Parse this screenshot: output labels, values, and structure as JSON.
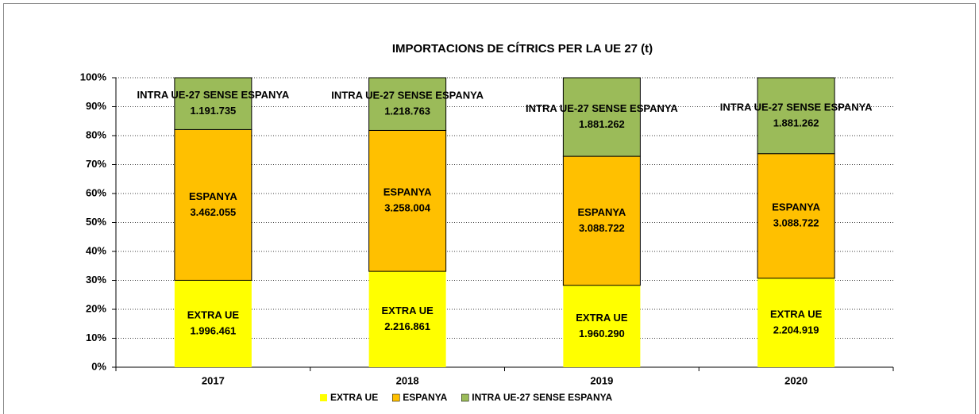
{
  "chart_data": {
    "type": "bar",
    "stacked": "percent",
    "title": "IMPORTACIONS DE CÍTRICS PER LA UE 27 (t)",
    "categories": [
      "2017",
      "2018",
      "2019",
      "2020"
    ],
    "series": [
      {
        "name": "EXTRA UE",
        "color": "#ffff00",
        "values": [
          1996461,
          2216861,
          1960290,
          2204919
        ],
        "value_labels": [
          "1.996.461",
          "2.216.861",
          "1.960.290",
          "2.204.919"
        ]
      },
      {
        "name": "ESPANYA",
        "color": "#ffc000",
        "values": [
          3462055,
          3258004,
          3088722,
          3088722
        ],
        "value_labels": [
          "3.462.055",
          "3.258.004",
          "3.088.722",
          "3.088.722"
        ]
      },
      {
        "name": "INTRA UE-27 SENSE ESPANYA",
        "color": "#9bbb59",
        "values": [
          1191735,
          1218763,
          1881262,
          1881262
        ],
        "value_labels": [
          "1.191.735",
          "1.218.763",
          "1.881.262",
          "1.881.262"
        ]
      }
    ],
    "ylim": [
      0,
      100
    ],
    "yticks": [
      {
        "value": 0,
        "label": "0%"
      },
      {
        "value": 10,
        "label": "10%"
      },
      {
        "value": 20,
        "label": "20%"
      },
      {
        "value": 30,
        "label": "30%"
      },
      {
        "value": 40,
        "label": "40%"
      },
      {
        "value": 50,
        "label": "50%"
      },
      {
        "value": 60,
        "label": "60%"
      },
      {
        "value": 70,
        "label": "70%"
      },
      {
        "value": 80,
        "label": "80%"
      },
      {
        "value": 90,
        "label": "90%"
      },
      {
        "value": 100,
        "label": "100%"
      }
    ],
    "grid": true,
    "legend": "bottom"
  }
}
